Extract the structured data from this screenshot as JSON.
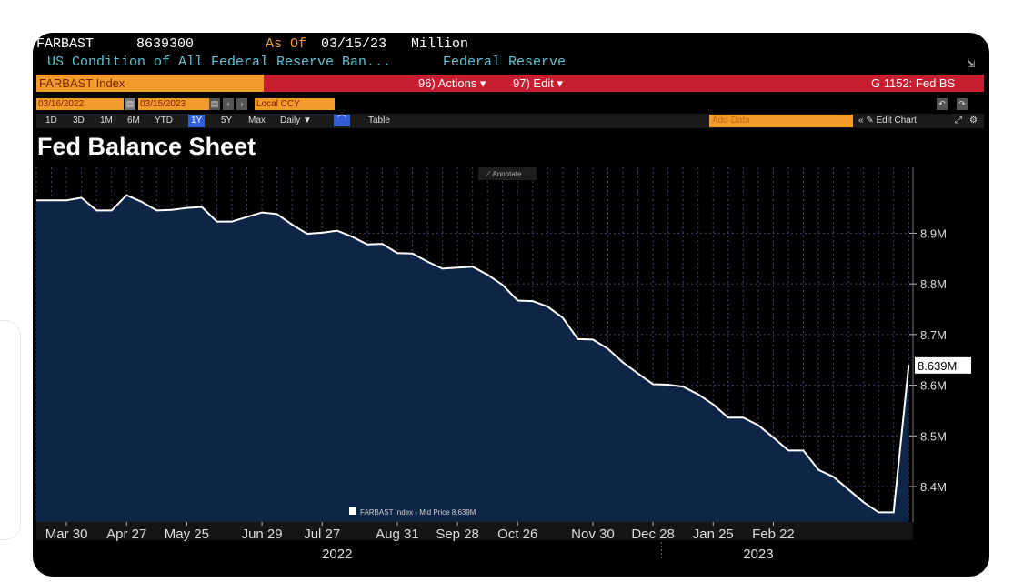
{
  "header": {
    "ticker": "FARBAST",
    "value": "8639300",
    "as_of": "As Of",
    "date": "03/15/23",
    "unit": "Million",
    "description": "US Condition of All Federal Reserve Ban...",
    "source": "Federal Reserve"
  },
  "toolbar": {
    "index_name": "FARBAST Index",
    "actions": "96) Actions ▾",
    "edit": "97) Edit ▾",
    "graph_id": "G 1152: Fed BS",
    "start_date": "03/16/2022",
    "end_date": "03/15/2023",
    "currency": "Local CCY",
    "ranges": [
      "1D",
      "3D",
      "1M",
      "6M",
      "YTD",
      "1Y",
      "5Y",
      "Max"
    ],
    "selected_range": "1Y",
    "frequency": "Daily ▼",
    "table": "Table",
    "add_data": "Add Data",
    "edit_chart": "« ✎ Edit Chart"
  },
  "annotate": "⟋ Annotate",
  "colors": {
    "background": "#000000",
    "fill": "#0f2548",
    "line": "#ffffff",
    "grid": "#3b4a70",
    "accent": "#f29a2a",
    "menu_bar": "#c81e32"
  },
  "chart_data": {
    "type": "area",
    "title": "Fed Balance Sheet",
    "x_tick_labels": [
      "Mar 30",
      "Apr 27",
      "May 25",
      "Jun 29",
      "Jul 27",
      "Aug 31",
      "Sep 28",
      "Oct 26",
      "Nov 30",
      "Dec 28",
      "Jan 25",
      "Feb 22"
    ],
    "x_year_labels": [
      "2022",
      "2023"
    ],
    "y_tick_labels": [
      "8.9M",
      "8.8M",
      "8.7M",
      "8.6M",
      "8.5M",
      "8.4M"
    ],
    "ylim": [
      8.33,
      9.03
    ],
    "last_value_label": "8.639M",
    "legend": "FARBAST Index - Mid Price 8.639M",
    "grid": true,
    "series": [
      {
        "values": [
          8.965,
          8.97,
          8.945,
          8.945,
          8.975,
          8.962,
          8.945,
          8.946,
          8.95,
          8.952,
          8.923,
          8.923,
          8.932,
          8.941,
          8.938,
          8.917,
          8.899,
          8.901,
          8.905,
          8.893,
          8.878,
          8.879,
          8.861,
          8.86,
          8.844,
          8.83,
          8.832,
          8.834,
          8.818,
          8.798,
          8.767,
          8.766,
          8.755,
          8.733,
          8.691,
          8.69,
          8.672,
          8.645,
          8.623,
          8.602,
          8.601,
          8.597,
          8.582,
          8.562,
          8.536,
          8.536,
          8.521,
          8.497,
          8.471,
          8.471,
          8.433,
          8.419,
          8.394,
          8.369,
          8.349,
          8.349,
          8.639
        ],
        "x_day": [
          14,
          21,
          28,
          35,
          42,
          49,
          56,
          63,
          70,
          77,
          84,
          91,
          98,
          105,
          112,
          119,
          126,
          133,
          140,
          147,
          154,
          161,
          168,
          175,
          182,
          189,
          196,
          203,
          210,
          217,
          224,
          231,
          238,
          245,
          252,
          259,
          266,
          273,
          280,
          287,
          294,
          301,
          308,
          315,
          322,
          329,
          336,
          343,
          350,
          357,
          364,
          371,
          378,
          385,
          392,
          399,
          406
        ]
      }
    ]
  }
}
